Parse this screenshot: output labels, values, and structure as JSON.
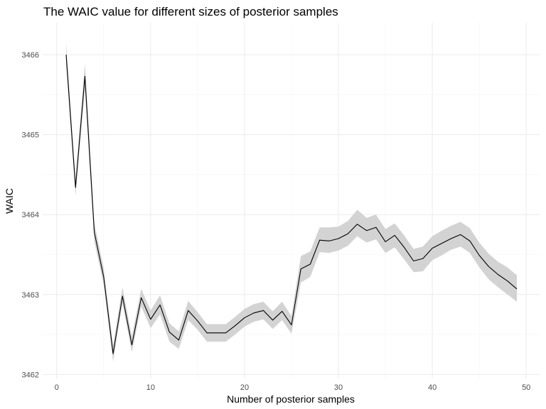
{
  "chart_data": {
    "type": "line",
    "title": "The WAIC value for different sizes of posterior samples",
    "xlabel": "Number of posterior samples",
    "ylabel": "WAIC",
    "xlim": [
      -1.5,
      51.5
    ],
    "ylim": [
      3461.95,
      3466.4
    ],
    "x_ticks": [
      "0",
      "10",
      "20",
      "30",
      "40",
      "50"
    ],
    "y_ticks": [
      "3462",
      "3463",
      "3464",
      "3465",
      "3466"
    ],
    "grid": true,
    "band_color": "#d3d3d3",
    "line_color": "#000000",
    "series": [
      {
        "x": [
          1,
          2,
          3,
          4,
          5,
          6,
          7,
          8,
          9,
          10,
          11,
          12,
          13,
          14,
          15,
          16,
          17,
          18,
          19,
          20,
          21,
          22,
          23,
          24,
          25,
          26,
          27,
          28,
          29,
          30,
          31,
          32,
          33,
          34,
          35,
          36,
          37,
          38,
          39,
          40,
          41,
          42,
          43,
          44,
          45,
          46,
          47,
          48,
          49
        ],
        "values": [
          3466.0,
          3464.34,
          3465.73,
          3463.78,
          3463.22,
          3462.26,
          3462.98,
          3462.37,
          3462.96,
          3462.69,
          3462.87,
          3462.53,
          3462.43,
          3462.8,
          3462.67,
          3462.52,
          3462.52,
          3462.52,
          3462.61,
          3462.71,
          3462.77,
          3462.8,
          3462.68,
          3462.79,
          3462.62,
          3463.32,
          3463.38,
          3463.68,
          3463.67,
          3463.7,
          3463.76,
          3463.88,
          3463.8,
          3463.84,
          3463.66,
          3463.74,
          3463.59,
          3463.42,
          3463.45,
          3463.58,
          3463.64,
          3463.7,
          3463.75,
          3463.67,
          3463.49,
          3463.35,
          3463.25,
          3463.17,
          3463.07
        ],
        "lower": [
          3465.87,
          3464.24,
          3465.57,
          3463.66,
          3463.12,
          3462.16,
          3462.88,
          3462.28,
          3462.85,
          3462.58,
          3462.75,
          3462.41,
          3462.32,
          3462.68,
          3462.56,
          3462.41,
          3462.41,
          3462.41,
          3462.5,
          3462.6,
          3462.66,
          3462.69,
          3462.57,
          3462.68,
          3462.51,
          3463.15,
          3463.22,
          3463.53,
          3463.52,
          3463.55,
          3463.61,
          3463.73,
          3463.65,
          3463.69,
          3463.52,
          3463.59,
          3463.44,
          3463.28,
          3463.29,
          3463.43,
          3463.49,
          3463.56,
          3463.6,
          3463.52,
          3463.34,
          3463.19,
          3463.09,
          3463.0,
          3462.91
        ],
        "upper": [
          3466.14,
          3464.45,
          3465.89,
          3463.9,
          3463.33,
          3462.37,
          3463.09,
          3462.48,
          3463.07,
          3462.8,
          3462.99,
          3462.64,
          3462.54,
          3462.92,
          3462.78,
          3462.63,
          3462.63,
          3462.63,
          3462.72,
          3462.82,
          3462.88,
          3462.91,
          3462.79,
          3462.91,
          3462.73,
          3463.48,
          3463.54,
          3463.84,
          3463.84,
          3463.85,
          3463.92,
          3464.06,
          3463.96,
          3464.0,
          3463.82,
          3463.89,
          3463.74,
          3463.57,
          3463.6,
          3463.73,
          3463.8,
          3463.86,
          3463.91,
          3463.83,
          3463.65,
          3463.51,
          3463.41,
          3463.34,
          3463.24
        ]
      }
    ]
  }
}
